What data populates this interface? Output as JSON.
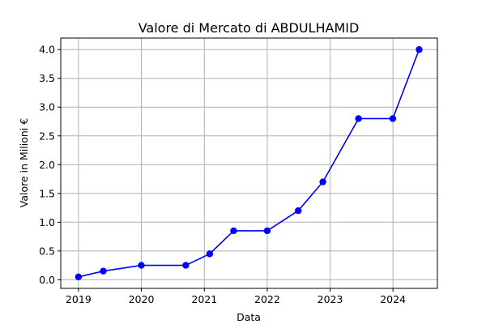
{
  "chart_data": {
    "type": "line",
    "title": "Valore di Mercato di ABDULHAMID",
    "xlabel": "Data",
    "ylabel": "Valore in Milioni €",
    "x_ticks": [
      "2019",
      "2020",
      "2021",
      "2022",
      "2023",
      "2024"
    ],
    "y_ticks": [
      "0.0",
      "0.5",
      "1.0",
      "1.5",
      "2.0",
      "2.5",
      "3.0",
      "3.5",
      "4.0"
    ],
    "xlim": [
      "2018-09-20",
      "2024-09-15"
    ],
    "ylim": [
      -0.15,
      4.2
    ],
    "grid": true,
    "line_color": "#0000ff",
    "series": [
      {
        "x": [
          "2019-01-01",
          "2019-05-25",
          "2020-01-01",
          "2020-09-15",
          "2021-02-01",
          "2021-06-20",
          "2022-01-01",
          "2022-06-30",
          "2022-11-20",
          "2023-06-15",
          "2023-12-31",
          "2024-06-01"
        ],
        "values": [
          0.05,
          0.15,
          0.25,
          0.25,
          0.45,
          0.85,
          0.85,
          1.2,
          1.7,
          2.8,
          2.8,
          4.0
        ]
      }
    ]
  }
}
